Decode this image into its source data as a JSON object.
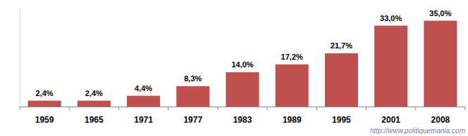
{
  "chart_data": {
    "type": "bar",
    "categories": [
      "1959",
      "1965",
      "1971",
      "1977",
      "1983",
      "1989",
      "1995",
      "2001",
      "2008"
    ],
    "values": [
      2.4,
      2.4,
      4.4,
      8.3,
      14.0,
      17.2,
      21.7,
      33.0,
      35.0
    ],
    "value_labels": [
      "2,4%",
      "2,4%",
      "4,4%",
      "8,3%",
      "14,0%",
      "17,2%",
      "21,7%",
      "33,0%",
      "35,0%"
    ],
    "color": "#c0504d",
    "ylim": [
      0,
      40
    ],
    "yticks": [],
    "grid": false,
    "data_labels": true,
    "tick_labels": "x",
    "annotations": [
      "http://www.politiquemania.com"
    ]
  }
}
